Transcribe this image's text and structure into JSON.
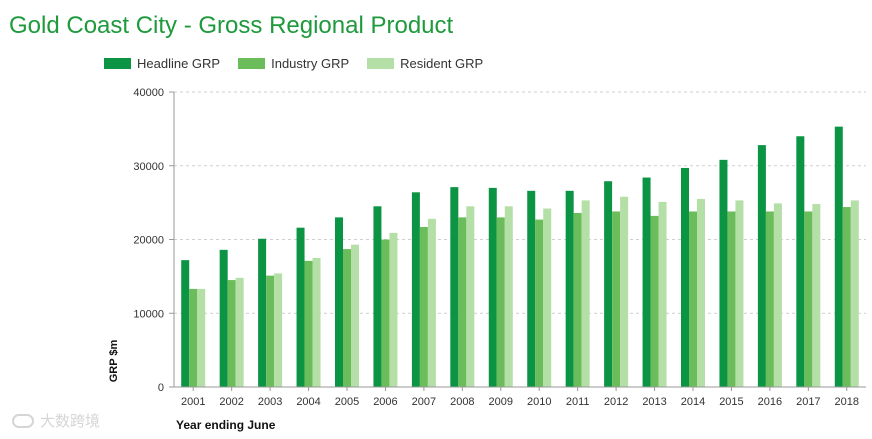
{
  "title": "Gold Coast City - Gross Regional Product",
  "legend": [
    {
      "label": "Headline GRP",
      "color": "#0b9444"
    },
    {
      "label": "Industry GRP",
      "color": "#6bbd5b"
    },
    {
      "label": "Resident GRP",
      "color": "#b4dfa6"
    }
  ],
  "watermark": "大数跨境",
  "chart_data": {
    "type": "bar",
    "title": "Gold Coast City - Gross Regional Product",
    "xlabel": "Year ending June",
    "ylabel": "GRP $m",
    "ylim": [
      0,
      40000
    ],
    "yticks": [
      "0",
      "10000",
      "20000",
      "30000",
      "40000"
    ],
    "grid": true,
    "legend_position": "top-left",
    "categories": [
      "2001",
      "2002",
      "2003",
      "2004",
      "2005",
      "2006",
      "2007",
      "2008",
      "2009",
      "2010",
      "2011",
      "2012",
      "2013",
      "2014",
      "2015",
      "2016",
      "2017",
      "2018"
    ],
    "series": [
      {
        "name": "Headline GRP",
        "color": "#0b9444",
        "values": [
          17200,
          18600,
          20100,
          21600,
          23000,
          24500,
          26400,
          27100,
          27000,
          26600,
          26600,
          27900,
          28400,
          29700,
          30800,
          32800,
          34000,
          35300
        ]
      },
      {
        "name": "Industry GRP",
        "color": "#6bbd5b",
        "values": [
          13300,
          14500,
          15100,
          17100,
          18700,
          20000,
          21700,
          23000,
          23000,
          22700,
          23600,
          23800,
          23200,
          23800,
          23800,
          23800,
          23800,
          24400
        ]
      },
      {
        "name": "Resident GRP",
        "color": "#b4dfa6",
        "values": [
          13300,
          14800,
          15400,
          17500,
          19300,
          20900,
          22800,
          24500,
          24500,
          24200,
          25300,
          25800,
          25100,
          25500,
          25300,
          24900,
          24800,
          25300
        ]
      }
    ]
  }
}
